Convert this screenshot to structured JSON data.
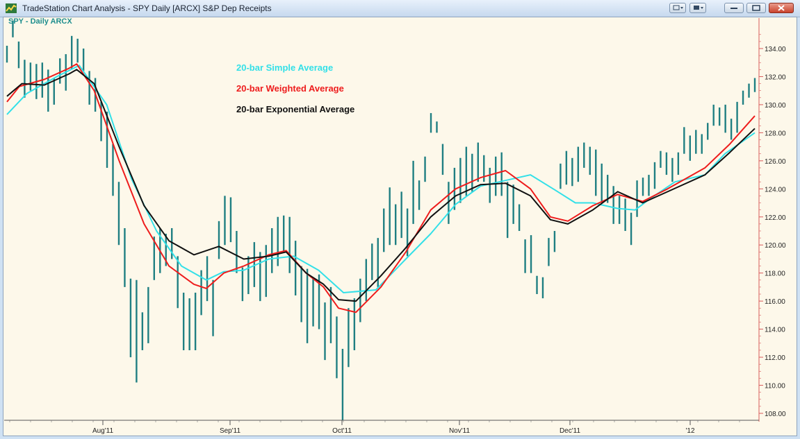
{
  "window": {
    "title": "TradeStation Chart Analysis - SPY Daily [ARCX] S&P Dep Receipts",
    "symbol_label": "SPY - Daily  ARCX"
  },
  "colors": {
    "bars": "#1f7f82",
    "sma": "#33e0e8",
    "wma": "#ee1c1c",
    "ema": "#111111",
    "axis": "#d85b5b",
    "background": "#fdf8ea"
  },
  "icons": [
    "tradestation-logo-icon",
    "minimize-icon",
    "restore-icon",
    "close-icon"
  ],
  "chart_data": {
    "type": "line",
    "title": "",
    "ylim": [
      107.5,
      136.5
    ],
    "y_ticks": [
      "134.00",
      "132.00",
      "130.00",
      "128.00",
      "126.00",
      "124.00",
      "122.00",
      "120.00",
      "118.00",
      "116.00",
      "114.00",
      "112.00",
      "110.00",
      "108.00"
    ],
    "x_ticks": [
      "Aug'11",
      "Sep'11",
      "Oct'11",
      "Nov'11",
      "Dec'11",
      "'12"
    ],
    "legend": [
      {
        "label": "20-bar Simple Average",
        "color": "#33e0e8"
      },
      {
        "label": "20-bar Weighted Average",
        "color": "#ee1c1c"
      },
      {
        "label": "20-bar Exponential Average",
        "color": "#111111"
      }
    ],
    "price_bars": [
      [
        133.0,
        134.2
      ],
      [
        134.8,
        136.0
      ],
      [
        132.6,
        134.5
      ],
      [
        130.5,
        133.2
      ],
      [
        131.0,
        133.0
      ],
      [
        130.4,
        132.9
      ],
      [
        130.5,
        133.0
      ],
      [
        129.5,
        132.5
      ],
      [
        130.0,
        131.9
      ],
      [
        131.5,
        133.3
      ],
      [
        131.0,
        133.6
      ],
      [
        132.5,
        134.9
      ],
      [
        133.0,
        134.7
      ],
      [
        132.4,
        134.0
      ],
      [
        130.0,
        132.4
      ],
      [
        129.5,
        131.9
      ],
      [
        127.4,
        130.2
      ],
      [
        125.5,
        129.5
      ],
      [
        123.5,
        127.2
      ],
      [
        120.0,
        124.5
      ],
      [
        117.0,
        121.2
      ],
      [
        112.0,
        117.6
      ],
      [
        110.2,
        117.5
      ],
      [
        112.5,
        115.2
      ],
      [
        113.0,
        117.0
      ],
      [
        117.5,
        120.6
      ],
      [
        118.0,
        121.2
      ],
      [
        118.5,
        120.8
      ],
      [
        119.0,
        121.2
      ],
      [
        115.5,
        119.2
      ],
      [
        112.5,
        116.6
      ],
      [
        112.5,
        116.2
      ],
      [
        112.5,
        116.6
      ],
      [
        115.0,
        118.2
      ],
      [
        116.0,
        119.2
      ],
      [
        113.5,
        117.5
      ],
      [
        119.0,
        121.7
      ],
      [
        120.0,
        123.5
      ],
      [
        120.2,
        123.4
      ],
      [
        118.0,
        121.0
      ],
      [
        116.0,
        118.4
      ],
      [
        116.5,
        119.2
      ],
      [
        117.0,
        120.2
      ],
      [
        116.0,
        119.5
      ],
      [
        116.3,
        120.0
      ],
      [
        118.0,
        121.2
      ],
      [
        118.5,
        122.0
      ],
      [
        119.5,
        122.1
      ],
      [
        118.0,
        122.0
      ],
      [
        116.4,
        120.3
      ],
      [
        114.5,
        118.5
      ],
      [
        113.0,
        118.3
      ],
      [
        114.2,
        117.6
      ],
      [
        114.0,
        117.9
      ],
      [
        111.8,
        115.9
      ],
      [
        113.0,
        117.0
      ],
      [
        110.5,
        114.9
      ],
      [
        107.5,
        112.6
      ],
      [
        111.3,
        115.5
      ],
      [
        112.5,
        116.2
      ],
      [
        114.5,
        117.6
      ],
      [
        116.0,
        119.0
      ],
      [
        117.5,
        120.1
      ],
      [
        117.0,
        120.5
      ],
      [
        119.5,
        122.6
      ],
      [
        120.0,
        124.1
      ],
      [
        120.0,
        122.9
      ],
      [
        120.5,
        123.8
      ],
      [
        119.2,
        122.6
      ],
      [
        121.5,
        126.0
      ],
      [
        122.5,
        124.6
      ],
      [
        124.5,
        126.3
      ],
      [
        128.0,
        129.4
      ],
      [
        128.0,
        128.8
      ],
      [
        125.0,
        127.2
      ],
      [
        121.5,
        124.5
      ],
      [
        122.5,
        125.5
      ],
      [
        123.0,
        126.2
      ],
      [
        123.5,
        127.0
      ],
      [
        123.8,
        126.5
      ],
      [
        124.5,
        127.3
      ],
      [
        124.5,
        126.4
      ],
      [
        123.0,
        125.5
      ],
      [
        123.5,
        126.3
      ],
      [
        123.5,
        126.6
      ],
      [
        120.5,
        124.5
      ],
      [
        121.5,
        124.3
      ],
      [
        121.0,
        122.9
      ],
      [
        118.0,
        120.4
      ],
      [
        118.0,
        120.7
      ],
      [
        116.5,
        117.8
      ],
      [
        116.2,
        117.7
      ],
      [
        118.5,
        120.5
      ],
      [
        119.5,
        121.0
      ],
      [
        124.0,
        125.8
      ],
      [
        124.3,
        126.7
      ],
      [
        124.2,
        126.2
      ],
      [
        124.5,
        127.0
      ],
      [
        125.5,
        127.3
      ],
      [
        125.0,
        127.0
      ],
      [
        123.5,
        126.8
      ],
      [
        123.0,
        125.8
      ],
      [
        123.0,
        125.0
      ],
      [
        121.5,
        124.2
      ],
      [
        121.5,
        123.5
      ],
      [
        121.0,
        123.3
      ],
      [
        120.0,
        122.3
      ],
      [
        122.0,
        124.6
      ],
      [
        123.5,
        124.8
      ],
      [
        123.5,
        125.0
      ],
      [
        124.0,
        125.9
      ],
      [
        125.5,
        126.7
      ],
      [
        125.0,
        126.6
      ],
      [
        124.5,
        126.2
      ],
      [
        125.0,
        126.6
      ],
      [
        126.5,
        128.4
      ],
      [
        126.0,
        127.8
      ],
      [
        126.5,
        128.2
      ],
      [
        126.5,
        127.9
      ],
      [
        127.5,
        128.7
      ],
      [
        128.5,
        130.0
      ],
      [
        128.5,
        129.8
      ],
      [
        128.0,
        130.0
      ],
      [
        127.5,
        129.0
      ],
      [
        128.0,
        130.2
      ],
      [
        130.0,
        131.0
      ],
      [
        130.5,
        131.5
      ],
      [
        130.9,
        131.9
      ]
    ],
    "series": [
      {
        "name": "20-bar Simple Average",
        "color": "#33e0e8",
        "points": [
          [
            0,
            129.3
          ],
          [
            8,
            130.8
          ],
          [
            20,
            132.0
          ],
          [
            29,
            132.8
          ],
          [
            40,
            130.0
          ],
          [
            50,
            124.7
          ],
          [
            60,
            121.0
          ],
          [
            70,
            118.5
          ],
          [
            80,
            117.5
          ],
          [
            87,
            118.1
          ],
          [
            95,
            118.2
          ],
          [
            105,
            119.0
          ],
          [
            115,
            119.2
          ],
          [
            125,
            118.2
          ],
          [
            135,
            116.6
          ],
          [
            148,
            116.8
          ],
          [
            160,
            119.0
          ],
          [
            170,
            120.8
          ],
          [
            180,
            122.9
          ],
          [
            190,
            124.2
          ],
          [
            200,
            124.6
          ],
          [
            210,
            125.0
          ],
          [
            220,
            123.9
          ],
          [
            228,
            123.0
          ],
          [
            235,
            123.0
          ],
          [
            245,
            122.6
          ],
          [
            252,
            122.5
          ],
          [
            258,
            123.3
          ],
          [
            268,
            124.5
          ],
          [
            280,
            125.0
          ],
          [
            288,
            126.5
          ],
          [
            300,
            128.0
          ]
        ]
      },
      {
        "name": "20-bar Weighted Average",
        "color": "#ee1c1c",
        "points": [
          [
            0,
            130.2
          ],
          [
            5,
            131.3
          ],
          [
            15,
            131.8
          ],
          [
            25,
            132.6
          ],
          [
            28,
            132.9
          ],
          [
            35,
            131.0
          ],
          [
            45,
            126.0
          ],
          [
            55,
            121.5
          ],
          [
            65,
            118.5
          ],
          [
            75,
            117.2
          ],
          [
            80,
            116.9
          ],
          [
            87,
            118.0
          ],
          [
            95,
            118.5
          ],
          [
            105,
            119.3
          ],
          [
            112,
            119.6
          ],
          [
            120,
            118.0
          ],
          [
            127,
            117.0
          ],
          [
            133,
            115.5
          ],
          [
            140,
            115.2
          ],
          [
            150,
            117.0
          ],
          [
            160,
            119.5
          ],
          [
            170,
            122.5
          ],
          [
            180,
            124.0
          ],
          [
            190,
            124.8
          ],
          [
            200,
            125.3
          ],
          [
            210,
            124.0
          ],
          [
            218,
            122.0
          ],
          [
            225,
            121.7
          ],
          [
            235,
            122.8
          ],
          [
            245,
            123.6
          ],
          [
            255,
            123.1
          ],
          [
            265,
            124.0
          ],
          [
            280,
            125.5
          ],
          [
            290,
            127.2
          ],
          [
            300,
            129.2
          ]
        ]
      },
      {
        "name": "20-bar Exponential Average",
        "color": "#111111",
        "points": [
          [
            0,
            130.6
          ],
          [
            6,
            131.5
          ],
          [
            15,
            131.4
          ],
          [
            25,
            132.2
          ],
          [
            28,
            132.5
          ],
          [
            35,
            131.5
          ],
          [
            45,
            127.0
          ],
          [
            55,
            122.8
          ],
          [
            65,
            120.3
          ],
          [
            75,
            119.3
          ],
          [
            85,
            119.9
          ],
          [
            95,
            119.0
          ],
          [
            105,
            119.2
          ],
          [
            112,
            119.5
          ],
          [
            120,
            118.0
          ],
          [
            127,
            117.2
          ],
          [
            133,
            116.1
          ],
          [
            140,
            116.0
          ],
          [
            150,
            117.8
          ],
          [
            160,
            119.8
          ],
          [
            170,
            122.0
          ],
          [
            180,
            123.5
          ],
          [
            190,
            124.3
          ],
          [
            200,
            124.4
          ],
          [
            210,
            123.5
          ],
          [
            218,
            121.8
          ],
          [
            225,
            121.5
          ],
          [
            235,
            122.5
          ],
          [
            245,
            123.8
          ],
          [
            255,
            123.0
          ],
          [
            265,
            123.8
          ],
          [
            280,
            125.0
          ],
          [
            290,
            126.6
          ],
          [
            300,
            128.3
          ]
        ]
      }
    ]
  }
}
